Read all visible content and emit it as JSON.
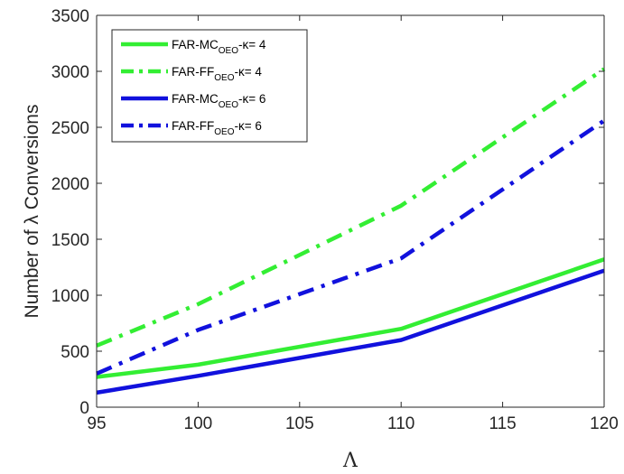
{
  "chart_data": {
    "type": "line",
    "title": "",
    "xlabel": "Λ",
    "ylabel": "Number of λ Conversions",
    "xlim": [
      95,
      120
    ],
    "ylim": [
      0,
      3500
    ],
    "xticks": [
      "95",
      "100",
      "105",
      "110",
      "115",
      "120"
    ],
    "yticks": [
      "0",
      "500",
      "1000",
      "1500",
      "2000",
      "2500",
      "3000",
      "3500"
    ],
    "grid": false,
    "legend_position": "top-left",
    "x": [
      95,
      100,
      110,
      120
    ],
    "series": [
      {
        "name_main": "FAR-MC",
        "name_sub": "OEO",
        "name_tail": "-κ= 4",
        "color": "#33ee33",
        "dash": "solid",
        "values": [
          270,
          380,
          700,
          1320
        ]
      },
      {
        "name_main": "FAR-FF",
        "name_sub": "OEO",
        "name_tail": "-κ= 4",
        "color": "#33ee33",
        "dash": "dashdot",
        "values": [
          550,
          920,
          1800,
          3020
        ]
      },
      {
        "name_main": "FAR-MC",
        "name_sub": "OEO",
        "name_tail": "-κ= 6",
        "color": "#1111dd",
        "dash": "solid",
        "values": [
          130,
          280,
          600,
          1220
        ]
      },
      {
        "name_main": "FAR-FF",
        "name_sub": "OEO",
        "name_tail": "-κ= 6",
        "color": "#1111dd",
        "dash": "dashdot",
        "values": [
          300,
          690,
          1330,
          2560
        ]
      }
    ]
  }
}
